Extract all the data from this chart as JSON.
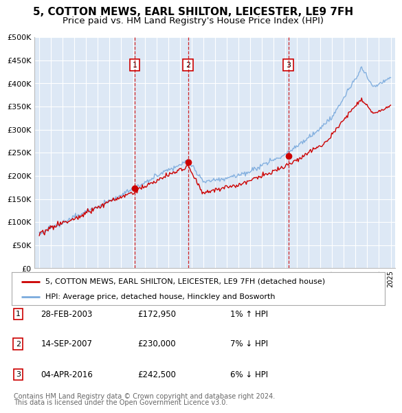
{
  "title": "5, COTTON MEWS, EARL SHILTON, LEICESTER, LE9 7FH",
  "subtitle": "Price paid vs. HM Land Registry's House Price Index (HPI)",
  "legend_label_red": "5, COTTON MEWS, EARL SHILTON, LEICESTER, LE9 7FH (detached house)",
  "legend_label_blue": "HPI: Average price, detached house, Hinckley and Bosworth",
  "footer_line1": "Contains HM Land Registry data © Crown copyright and database right 2024.",
  "footer_line2": "This data is licensed under the Open Government Licence v3.0.",
  "transactions": [
    {
      "num": 1,
      "date": "28-FEB-2003",
      "price": 172950,
      "hpi_diff": "1% ↑ HPI",
      "year": 2003.15
    },
    {
      "num": 2,
      "date": "14-SEP-2007",
      "price": 230000,
      "hpi_diff": "7% ↓ HPI",
      "year": 2007.71
    },
    {
      "num": 3,
      "date": "04-APR-2016",
      "price": 242500,
      "hpi_diff": "6% ↓ HPI",
      "year": 2016.26
    }
  ],
  "ylim": [
    0,
    500000
  ],
  "yticks": [
    0,
    50000,
    100000,
    150000,
    200000,
    250000,
    300000,
    350000,
    400000,
    450000,
    500000
  ],
  "background_color": "#dde8f5",
  "grid_color": "#ffffff",
  "red_color": "#cc0000",
  "blue_color": "#7aaadd",
  "title_fontsize": 12,
  "subtitle_fontsize": 10
}
